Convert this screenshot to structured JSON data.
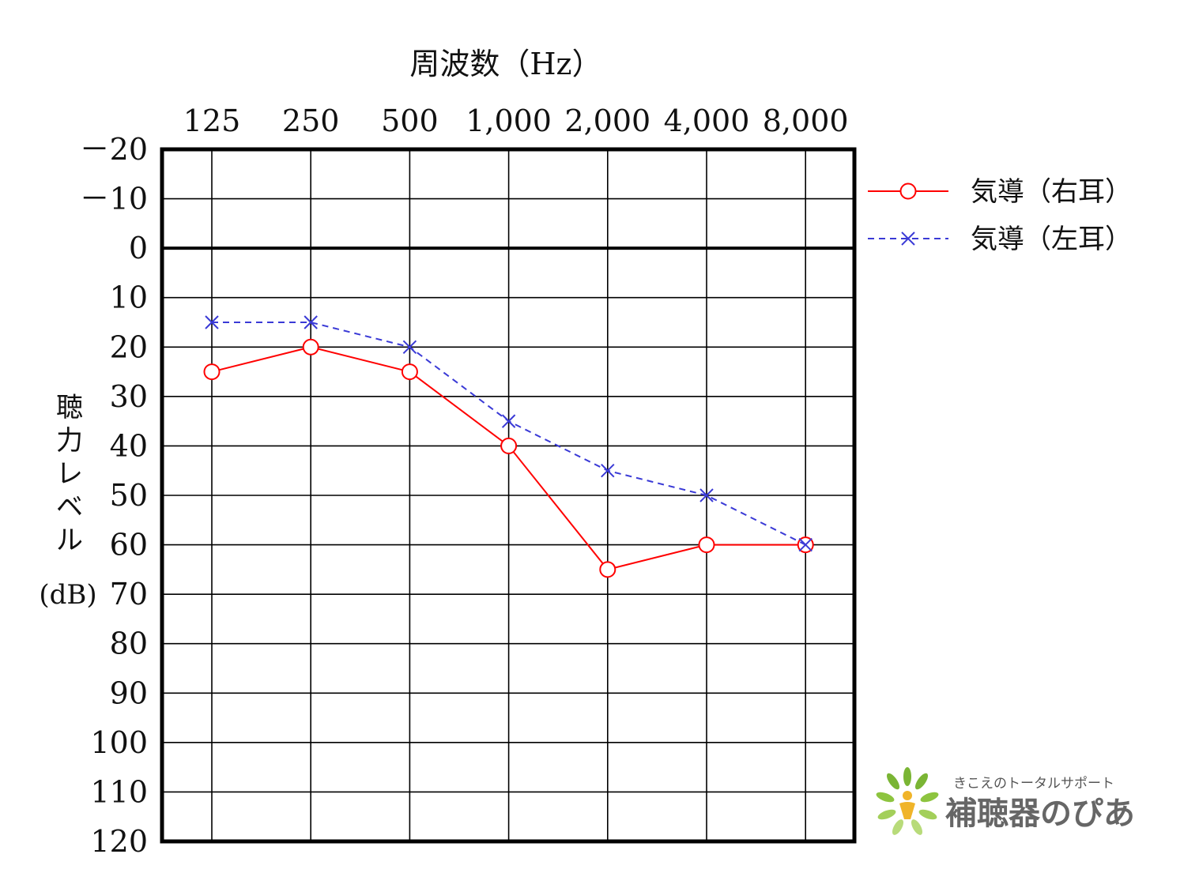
{
  "chart_data": {
    "type": "line",
    "title": "周波数（Hz）",
    "ylabel": "聴力レベル",
    "ylabel_unit": "(dB)",
    "categories": [
      "125",
      "250",
      "500",
      "1,000",
      "2,000",
      "4,000",
      "8,000"
    ],
    "y_ticks": [
      -20,
      -10,
      0,
      10,
      20,
      30,
      40,
      50,
      60,
      70,
      80,
      90,
      100,
      110,
      120
    ],
    "y_tick_labels": [
      "－20",
      "－10",
      "0",
      "10",
      "20",
      "30",
      "40",
      "50",
      "60",
      "70",
      "80",
      "90",
      "100",
      "110",
      "120"
    ],
    "ylim": [
      -20,
      120
    ],
    "y_inverted": true,
    "grid": true,
    "legend_position": "top-right",
    "series": [
      {
        "name": "気導（右耳）",
        "marker": "circle",
        "line": "solid",
        "color": "#ff0000",
        "values": [
          25,
          20,
          25,
          40,
          65,
          60,
          60
        ]
      },
      {
        "name": "気導（左耳）",
        "marker": "x",
        "line": "dashed",
        "color": "#3a3ad6",
        "values": [
          15,
          15,
          20,
          35,
          45,
          50,
          60
        ]
      }
    ]
  },
  "logo": {
    "tagline": "きこえのトータルサポート",
    "name": "補聴器のぴあ",
    "colors": {
      "leaf": "#7ab534",
      "figure": "#f0b429",
      "text": "#666666"
    }
  }
}
